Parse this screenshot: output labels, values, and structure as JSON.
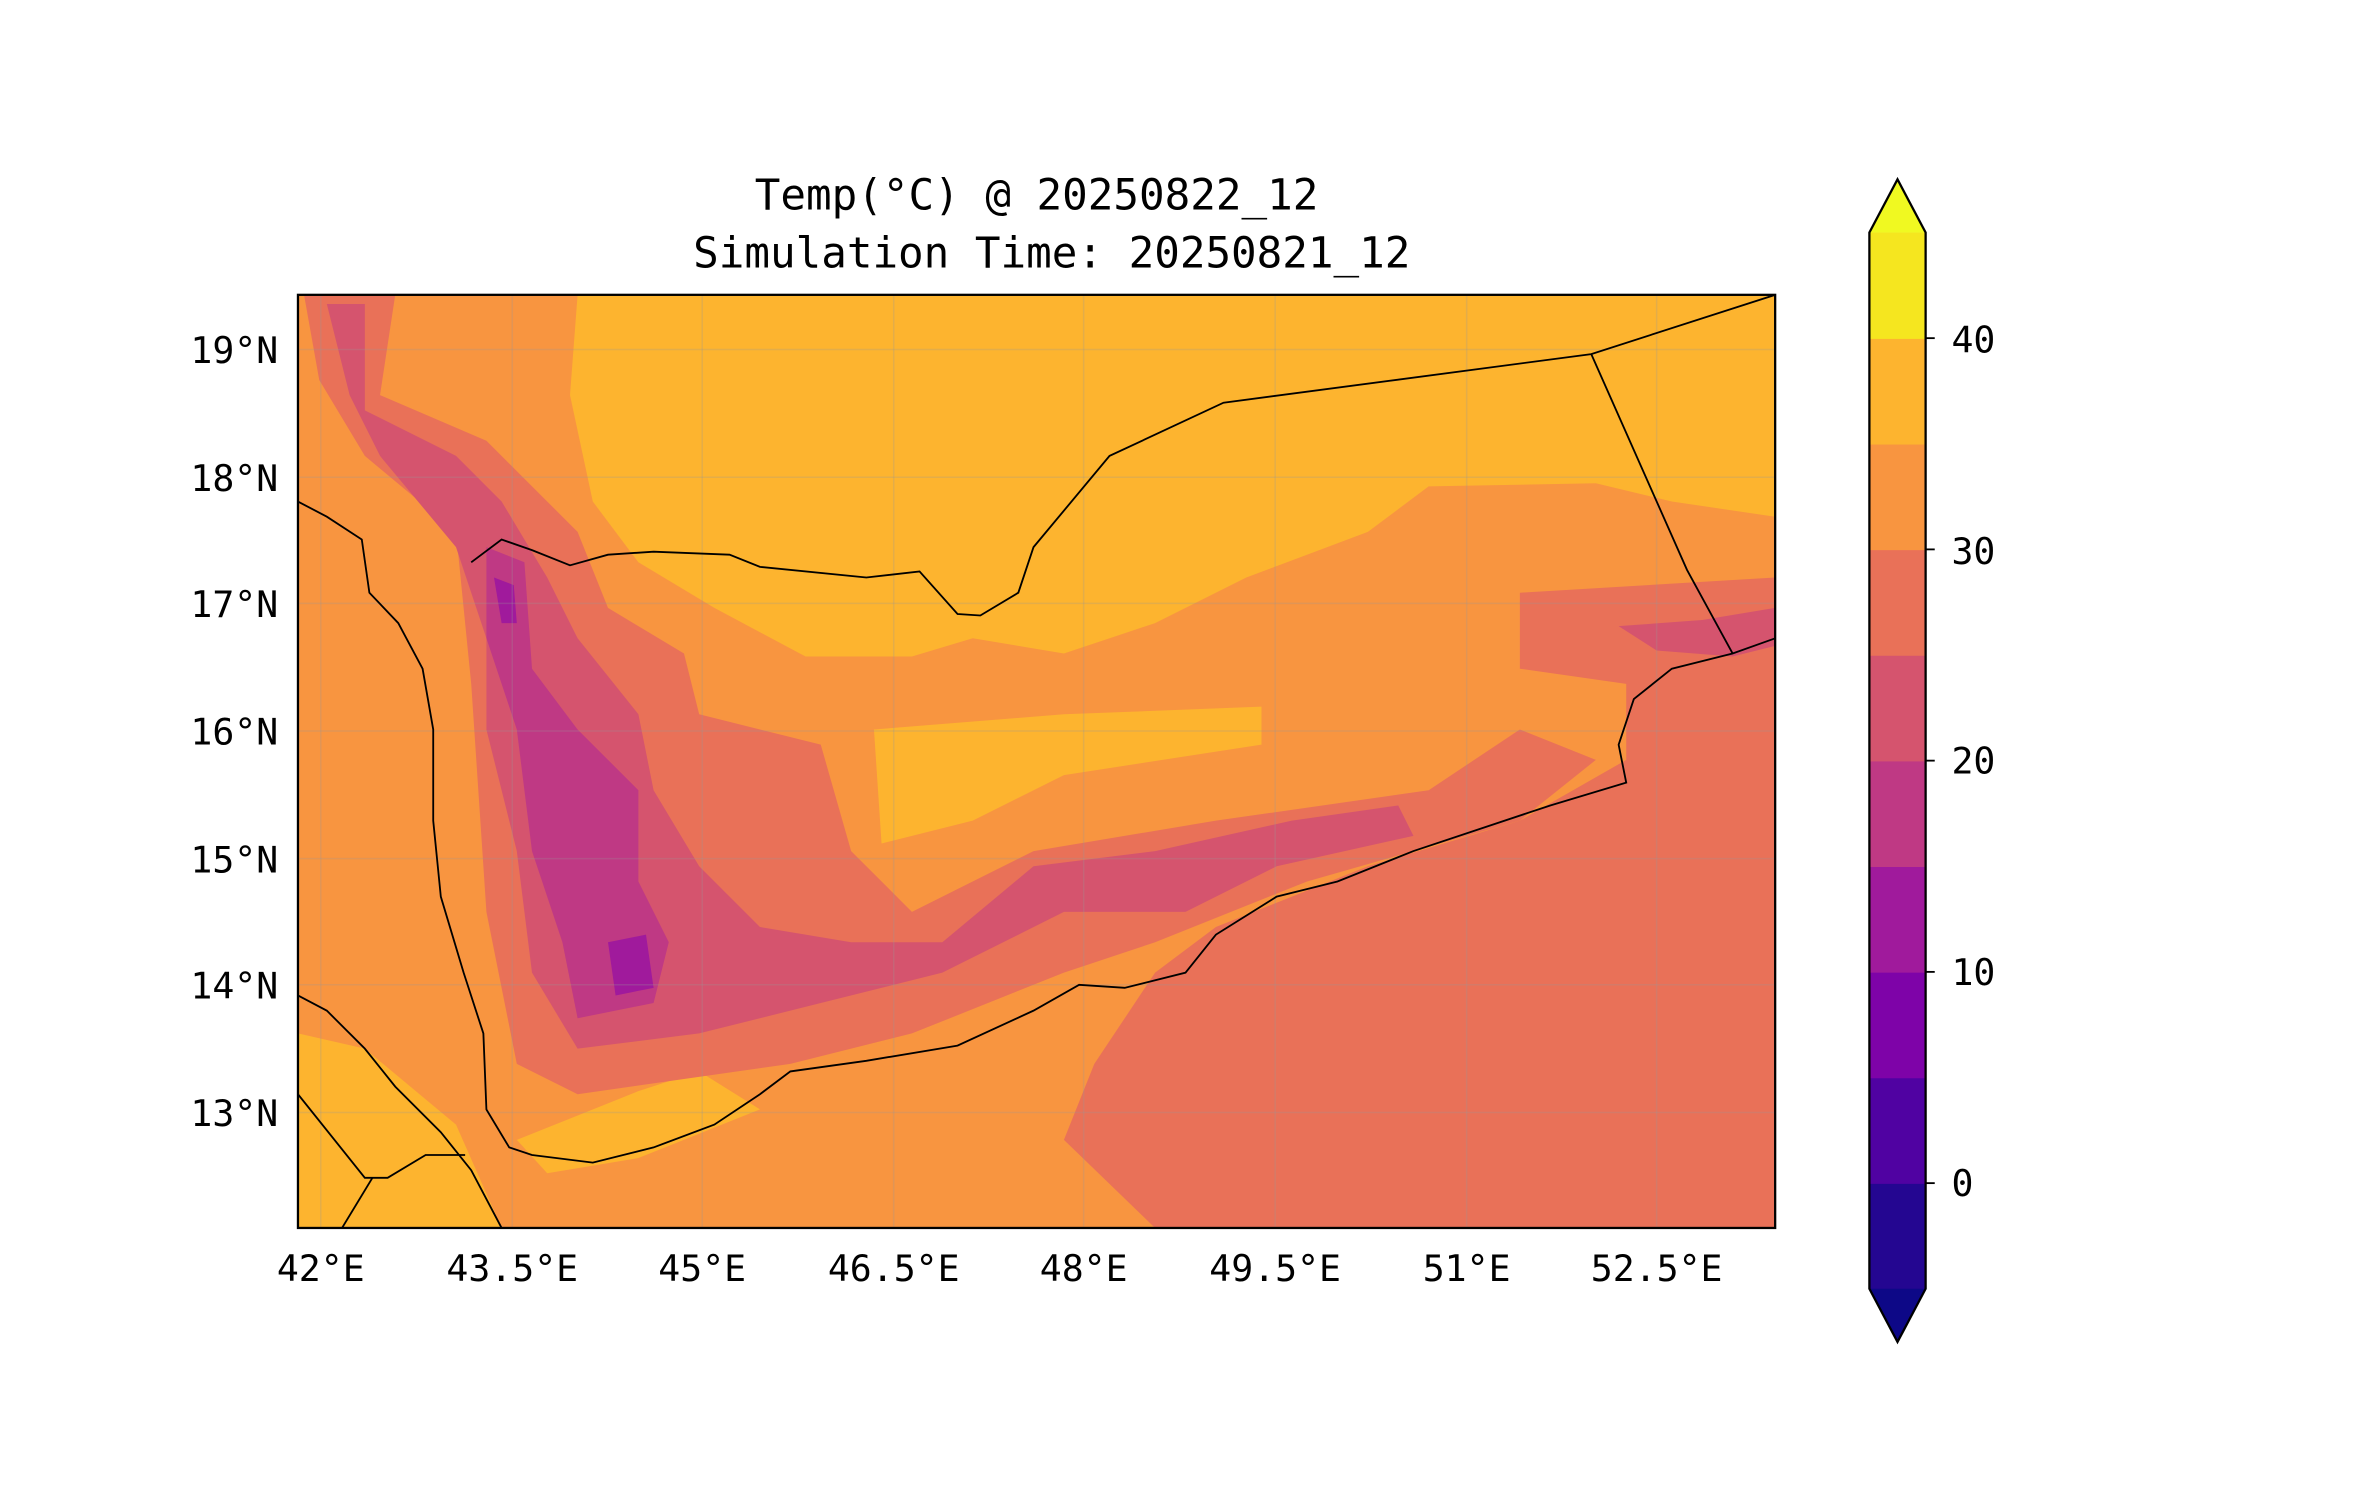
{
  "chart_data": {
    "type": "heatmap",
    "title": "Temp(°C) @ 20250822_12",
    "subtitle": "Simulation Time: 20250821_12",
    "variable": "Temp(°C)",
    "x_ticks": [
      "42°E",
      "43.5°E",
      "45°E",
      "46.5°E",
      "48°E",
      "49.5°E",
      "51°E",
      "52.5°E"
    ],
    "x_tick_values": [
      42,
      43.5,
      45,
      46.5,
      48,
      49.5,
      51,
      52.5
    ],
    "y_ticks": [
      "19°N",
      "18°N",
      "17°N",
      "16°N",
      "15°N",
      "14°N",
      "13°N"
    ],
    "y_tick_values": [
      19,
      18,
      17,
      16,
      15,
      14,
      13
    ],
    "xlim": [
      41.82,
      53.43
    ],
    "ylim": [
      12.1,
      19.43
    ],
    "colorbar": {
      "ticks": [
        "40",
        "30",
        "20",
        "10",
        "0"
      ],
      "tick_values": [
        40,
        30,
        20,
        10,
        0
      ],
      "levels": [
        -5,
        0,
        5,
        10,
        15,
        20,
        25,
        30,
        35,
        40,
        45
      ],
      "colors": [
        "#240691",
        "#5002a2",
        "#7e03a8",
        "#a01a9c",
        "#bf3984",
        "#d5546e",
        "#e97158",
        "#f89540",
        "#fdb42f",
        "#f5e61f"
      ],
      "under_color": "#0d0887",
      "over_color": "#f0f921",
      "extend": "both"
    }
  }
}
